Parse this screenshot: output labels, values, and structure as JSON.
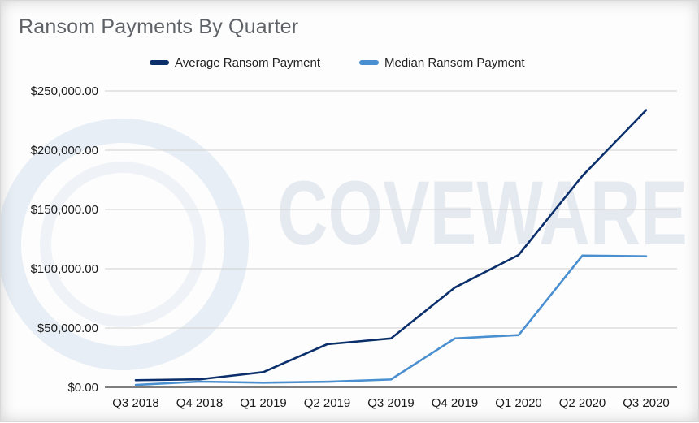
{
  "chart_data": {
    "type": "line",
    "title": "Ransom Payments By Quarter",
    "xlabel": "",
    "ylabel": "",
    "categories": [
      "Q3 2018",
      "Q4 2018",
      "Q1 2019",
      "Q2 2019",
      "Q3 2019",
      "Q4 2019",
      "Q1 2020",
      "Q2 2020",
      "Q3 2020"
    ],
    "series": [
      {
        "name": "Average Ransom Payment",
        "color": "#0b2f6b",
        "values": [
          6000,
          6700,
          12800,
          36300,
          41200,
          84100,
          111600,
          178300,
          233800
        ]
      },
      {
        "name": "Median Ransom Payment",
        "color": "#4a90d0",
        "values": [
          2000,
          4800,
          3900,
          4700,
          6600,
          41200,
          44000,
          111100,
          110500
        ]
      }
    ],
    "ylim": [
      0,
      250000
    ],
    "yticks": [
      "$0.00",
      "$50,000.00",
      "$100,000.00",
      "$150,000.00",
      "$200,000.00",
      "$250,000.00"
    ],
    "ytick_values": [
      0,
      50000,
      100000,
      150000,
      200000,
      250000
    ],
    "grid": true,
    "legend": "top",
    "watermark": "COVEWARE"
  }
}
